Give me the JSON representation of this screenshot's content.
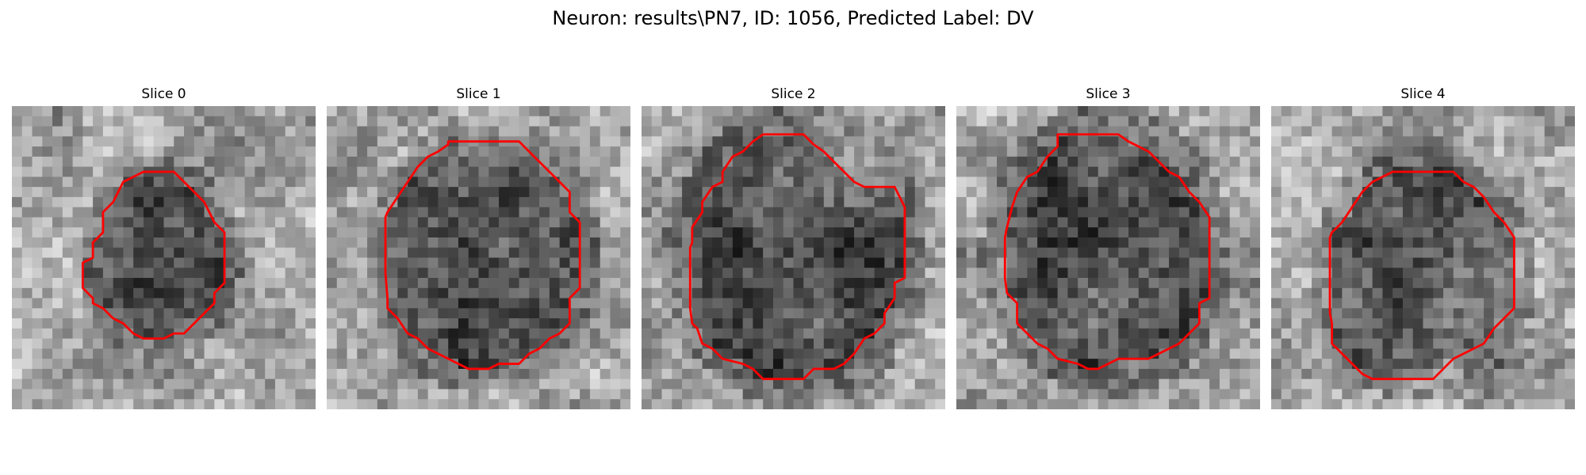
{
  "figure": {
    "title": "Neuron: results\\PN7, ID: 1056, Predicted Label: DV",
    "contour_color": "#ff0000",
    "grid_size": 30
  },
  "slices": [
    {
      "label": "Slice 0",
      "contour": [
        [
          13,
          6.5
        ],
        [
          16,
          6.5
        ],
        [
          17,
          7.5
        ],
        [
          18,
          8.5
        ],
        [
          19,
          9.5
        ],
        [
          20,
          11.5
        ],
        [
          21,
          12.5
        ],
        [
          21,
          15.5
        ],
        [
          21,
          17.5
        ],
        [
          20,
          18.5
        ],
        [
          20,
          19.5
        ],
        [
          19,
          20.5
        ],
        [
          18,
          21.5
        ],
        [
          17,
          22.5
        ],
        [
          16,
          22.5
        ],
        [
          15,
          23.0
        ],
        [
          13,
          23.0
        ],
        [
          12,
          22.5
        ],
        [
          11,
          21.5
        ],
        [
          10,
          21.0
        ],
        [
          9,
          20.0
        ],
        [
          8,
          19.5
        ],
        [
          8,
          19.0
        ],
        [
          7,
          18.0
        ],
        [
          7,
          15.5
        ],
        [
          8,
          15.0
        ],
        [
          8,
          13.5
        ],
        [
          9,
          12.5
        ],
        [
          9,
          10.5
        ],
        [
          10,
          9.5
        ],
        [
          11,
          7.5
        ],
        [
          12,
          7.0
        ]
      ]
    },
    {
      "label": "Slice 1",
      "contour": [
        [
          12,
          3.5
        ],
        [
          19,
          3.5
        ],
        [
          20,
          4.5
        ],
        [
          21,
          5.5
        ],
        [
          22,
          6.5
        ],
        [
          23,
          7.5
        ],
        [
          24,
          8.5
        ],
        [
          24,
          10.5
        ],
        [
          25,
          11.5
        ],
        [
          25,
          12.5
        ],
        [
          25,
          17.5
        ],
        [
          25,
          18.0
        ],
        [
          24,
          19.0
        ],
        [
          24,
          21.5
        ],
        [
          23,
          22.5
        ],
        [
          22,
          23.0
        ],
        [
          21,
          24.0
        ],
        [
          20,
          24.5
        ],
        [
          19,
          25.5
        ],
        [
          17,
          25.5
        ],
        [
          16,
          26.0
        ],
        [
          14,
          26.0
        ],
        [
          13,
          25.5
        ],
        [
          12,
          25.0
        ],
        [
          11,
          24.5
        ],
        [
          10,
          24.0
        ],
        [
          9,
          23.0
        ],
        [
          8,
          22.5
        ],
        [
          7,
          21.0
        ],
        [
          6,
          20.0
        ],
        [
          6,
          19.0
        ],
        [
          5.8,
          16.5
        ],
        [
          5.8,
          11.0
        ],
        [
          6,
          10.5
        ],
        [
          7,
          9.0
        ],
        [
          8,
          7.5
        ],
        [
          9,
          6.0
        ],
        [
          10,
          5.0
        ],
        [
          11,
          4.5
        ],
        [
          12,
          3.8
        ]
      ]
    },
    {
      "label": "Slice 2",
      "contour": [
        [
          12,
          2.8
        ],
        [
          16,
          2.8
        ],
        [
          17,
          3.8
        ],
        [
          18,
          4.5
        ],
        [
          19,
          5.5
        ],
        [
          20,
          6.5
        ],
        [
          21,
          7.5
        ],
        [
          22,
          8.0
        ],
        [
          25,
          8.0
        ],
        [
          25.5,
          9.0
        ],
        [
          26,
          10.0
        ],
        [
          26,
          17.0
        ],
        [
          25,
          17.5
        ],
        [
          25,
          19.0
        ],
        [
          24,
          20.5
        ],
        [
          24,
          21.5
        ],
        [
          23,
          22.5
        ],
        [
          22,
          23.0
        ],
        [
          21,
          24.5
        ],
        [
          20,
          25.5
        ],
        [
          19,
          26.0
        ],
        [
          17,
          26.0
        ],
        [
          16,
          27.0
        ],
        [
          12,
          27.0
        ],
        [
          11,
          26.0
        ],
        [
          10,
          25.5
        ],
        [
          8,
          25.0
        ],
        [
          7,
          24.0
        ],
        [
          6,
          23.5
        ],
        [
          5.5,
          22.0
        ],
        [
          5,
          21.5
        ],
        [
          4.8,
          20.0
        ],
        [
          4.8,
          14.0
        ],
        [
          5,
          13.5
        ],
        [
          5,
          12.0
        ],
        [
          6,
          10.5
        ],
        [
          6,
          9.5
        ],
        [
          7,
          8.0
        ],
        [
          8,
          7.5
        ],
        [
          8,
          6.5
        ],
        [
          9,
          5.0
        ],
        [
          10,
          4.5
        ],
        [
          11,
          3.5
        ]
      ]
    },
    {
      "label": "Slice 3",
      "contour": [
        [
          10,
          2.8
        ],
        [
          16,
          2.8
        ],
        [
          17,
          3.5
        ],
        [
          18,
          4.0
        ],
        [
          19,
          4.5
        ],
        [
          20,
          5.5
        ],
        [
          21,
          6.5
        ],
        [
          22,
          7.0
        ],
        [
          23,
          8.5
        ],
        [
          24,
          9.5
        ],
        [
          25,
          11.0
        ],
        [
          25,
          19.0
        ],
        [
          24,
          19.5
        ],
        [
          24,
          21.5
        ],
        [
          23,
          22.5
        ],
        [
          22,
          23.5
        ],
        [
          21,
          24.0
        ],
        [
          20,
          24.5
        ],
        [
          19,
          25.0
        ],
        [
          17,
          25.0
        ],
        [
          16,
          25.0
        ],
        [
          14,
          26.0
        ],
        [
          13,
          26.0
        ],
        [
          12,
          25.5
        ],
        [
          10,
          25.0
        ],
        [
          9,
          24.0
        ],
        [
          8,
          23.5
        ],
        [
          7,
          22.5
        ],
        [
          6,
          21.5
        ],
        [
          6,
          19.5
        ],
        [
          5,
          18.5
        ],
        [
          4.8,
          17.0
        ],
        [
          4.8,
          13.0
        ],
        [
          5,
          12.0
        ],
        [
          5.5,
          10.0
        ],
        [
          6,
          8.5
        ],
        [
          7,
          7.0
        ],
        [
          8,
          6.5
        ],
        [
          9,
          5.0
        ],
        [
          10,
          4.0
        ]
      ]
    },
    {
      "label": "Slice 4",
      "contour": [
        [
          12,
          6.5
        ],
        [
          18,
          6.5
        ],
        [
          19,
          7.5
        ],
        [
          20,
          8.0
        ],
        [
          21,
          9.0
        ],
        [
          22,
          10.5
        ],
        [
          23,
          11.5
        ],
        [
          24,
          13.0
        ],
        [
          24,
          20.0
        ],
        [
          23,
          21.0
        ],
        [
          22,
          22.0
        ],
        [
          21,
          23.5
        ],
        [
          20,
          24.0
        ],
        [
          19,
          24.5
        ],
        [
          18,
          25.0
        ],
        [
          17,
          26.0
        ],
        [
          16,
          27.0
        ],
        [
          10,
          27.0
        ],
        [
          9,
          26.5
        ],
        [
          8,
          25.5
        ],
        [
          7,
          24.5
        ],
        [
          6,
          23.5
        ],
        [
          6,
          21.5
        ],
        [
          5.8,
          20.5
        ],
        [
          5.8,
          13.0
        ],
        [
          6,
          12.5
        ],
        [
          7,
          11.5
        ],
        [
          8,
          10.0
        ],
        [
          9,
          8.5
        ],
        [
          10,
          7.5
        ],
        [
          11,
          7.0
        ]
      ]
    }
  ]
}
